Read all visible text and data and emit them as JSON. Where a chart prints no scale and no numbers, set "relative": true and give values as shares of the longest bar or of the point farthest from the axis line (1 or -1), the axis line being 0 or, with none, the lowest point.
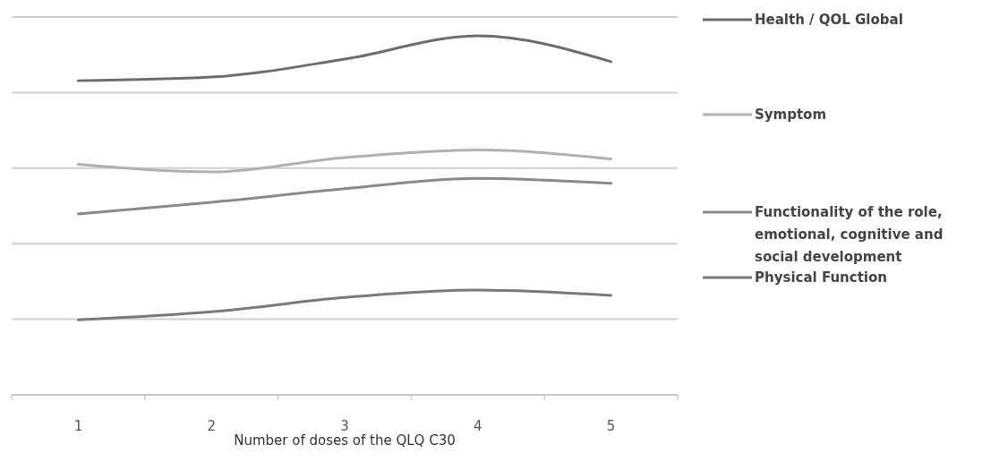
{
  "chart_data": {
    "type": "line",
    "relative": true,
    "xlabel": "Number of doses of the QLQ C30",
    "categories": [
      "1",
      "2",
      "3",
      "4",
      "5"
    ],
    "grid": "y",
    "legend": "right",
    "marker": "none",
    "line_style": "solid",
    "series": [
      {
        "name": "Health / QOL Global",
        "color": "#6d6d6d",
        "values": [
          0.875,
          0.885,
          0.935,
          1,
          0.928
        ]
      },
      {
        "name": "Symptom",
        "color": "#b0b0b0",
        "values": [
          0.642,
          0.621,
          0.661,
          0.682,
          0.657
        ]
      },
      {
        "name": "Functionality of the role, emotional, cognitive and social development",
        "color": "#8a8a8a",
        "values": [
          0.504,
          0.536,
          0.574,
          0.603,
          0.589
        ]
      },
      {
        "name": "Physical Function",
        "color": "#7a7a7a",
        "values": [
          0.209,
          0.231,
          0.271,
          0.292,
          0.277
        ]
      }
    ]
  }
}
